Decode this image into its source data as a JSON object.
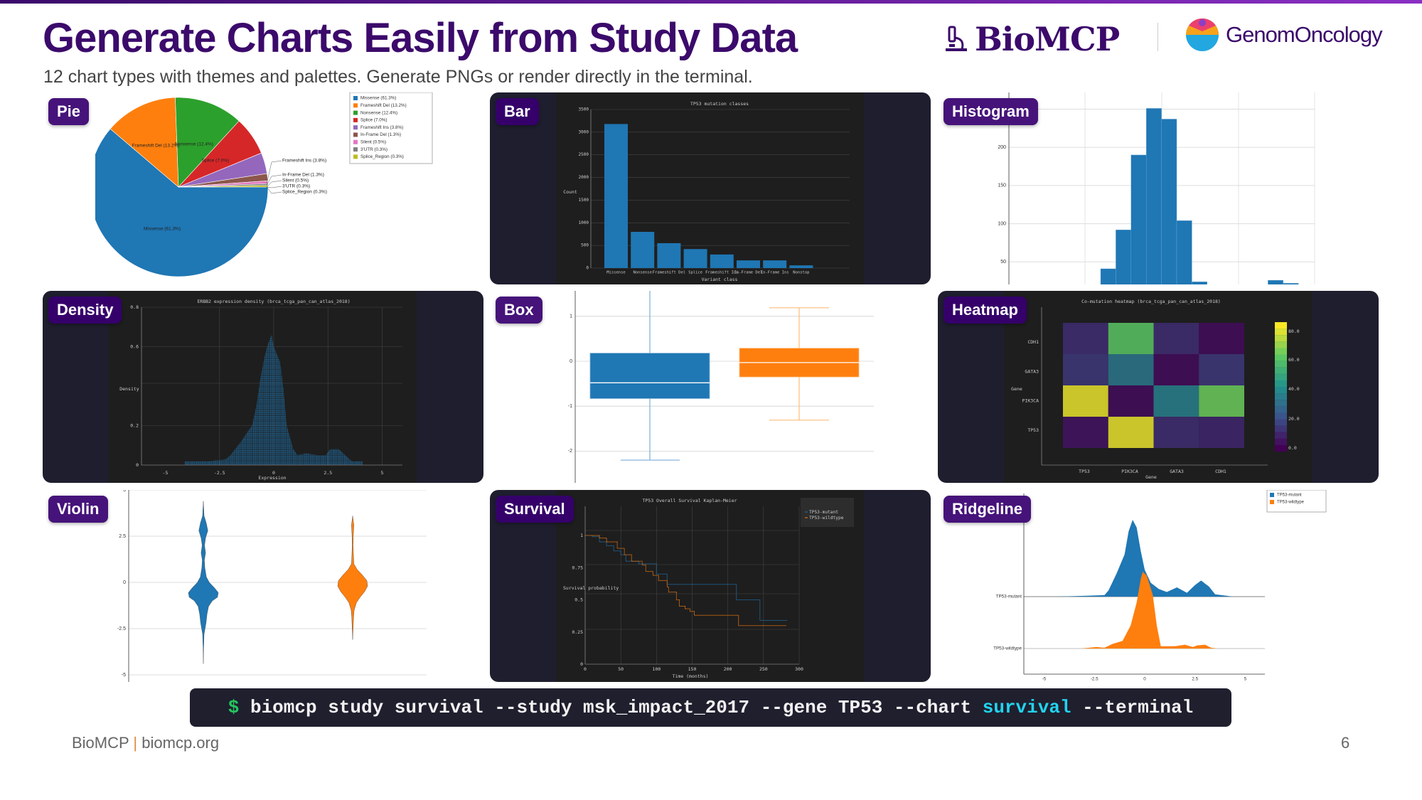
{
  "header": {
    "title": "Generate Charts Easily from Study Data",
    "subtitle": "12 chart types with themes and palettes. Generate PNGs or render directly in the terminal.",
    "logo_biomcp": "BioMCP",
    "logo_genomoncology": "GenomOncology"
  },
  "panels": [
    "Pie",
    "Bar",
    "Histogram",
    "Density",
    "Box",
    "Heatmap",
    "Violin",
    "Survival",
    "Ridgeline"
  ],
  "command": {
    "prompt": "$",
    "before": " biomcp study survival --study msk_impact_2017 --gene TP53 --chart ",
    "highlight": "survival",
    "after": " --terminal",
    "colors": {
      "prompt": "#22c55e",
      "highlight": "#22d3ee"
    }
  },
  "footer": {
    "brand": "BioMCP",
    "separator": "|",
    "url": "biomcp.org",
    "page": "6"
  },
  "chart_data": [
    {
      "type": "pie",
      "slices": [
        {
          "label": "Missense (61.3%)",
          "value": 61.3,
          "color": "#1f77b4"
        },
        {
          "label": "Frameshift Del (13.2%)",
          "value": 13.2,
          "color": "#ff7f0e"
        },
        {
          "label": "Nonsense (12.4%)",
          "value": 12.4,
          "color": "#2ca02c"
        },
        {
          "label": "Splice (7.0%)",
          "value": 7.0,
          "color": "#d62728"
        },
        {
          "label": "Frameshift Ins (3.8%)",
          "value": 3.8,
          "color": "#9467bd"
        },
        {
          "label": "In-Frame Del (1.3%)",
          "value": 1.3,
          "color": "#8c564b"
        },
        {
          "label": "Silent (0.5%)",
          "value": 0.5,
          "color": "#e377c2"
        },
        {
          "label": "3'UTR (0.3%)",
          "value": 0.3,
          "color": "#7f7f7f"
        },
        {
          "label": "Splice_Region (0.3%)",
          "value": 0.3,
          "color": "#bcbd22"
        }
      ],
      "legend": "top-right"
    },
    {
      "type": "bar",
      "title": "TP53 mutation classes",
      "xlabel": "Variant class",
      "ylabel": "Count",
      "categories": [
        "Missense",
        "Nonsense",
        "Frameshift Del",
        "Splice",
        "Frameshift Ins",
        "In-Frame Del",
        "In-Frame Ins",
        "Nonstop"
      ],
      "values": [
        3180,
        800,
        550,
        420,
        300,
        170,
        170,
        60
      ],
      "ylim": [
        0,
        3500
      ],
      "yticks": [
        "0",
        "500",
        "1000",
        "1500",
        "2000",
        "2500",
        "3000",
        "3500"
      ],
      "color": "#1f77b4",
      "theme": "dark",
      "grid": true
    },
    {
      "type": "bar",
      "subtype": "histogram",
      "values": [
        41,
        92,
        190,
        251,
        237,
        104,
        24,
        0,
        0,
        0,
        0,
        26,
        22
      ],
      "ylim": [
        0,
        260
      ],
      "yticks": [
        "50",
        "100",
        "150",
        "200"
      ],
      "color": "#1f77b4",
      "grid": true
    },
    {
      "type": "area",
      "subtype": "density",
      "title": "ERBB2 expression density (brca_tcga_pan_can_atlas_2018)",
      "xlabel": "Expression",
      "ylabel": "Density",
      "xlim": [
        -6,
        6
      ],
      "ylim": [
        0,
        0.8
      ],
      "xticks": [
        "-5",
        "-2.5",
        "0",
        "2.5",
        "5"
      ],
      "yticks": [
        "0",
        "0.2",
        "0.6",
        "0.8"
      ],
      "x": [
        -4.1,
        -3,
        -2.5,
        -2.2,
        -2,
        -1.5,
        -1.2,
        -1,
        -0.8,
        -0.6,
        -0.4,
        -0.25,
        -0.1,
        0,
        0.15,
        0.3,
        0.45,
        0.6,
        0.75,
        0.9,
        1.1,
        1.5,
        2,
        2.4,
        2.6,
        3,
        3.3,
        3.6,
        4.1
      ],
      "y": [
        0.02,
        0.02,
        0.025,
        0.03,
        0.05,
        0.12,
        0.17,
        0.2,
        0.3,
        0.45,
        0.56,
        0.62,
        0.66,
        0.6,
        0.56,
        0.52,
        0.38,
        0.2,
        0.14,
        0.08,
        0.05,
        0.06,
        0.05,
        0.05,
        0.08,
        0.08,
        0.05,
        0.02,
        0.02
      ],
      "color": "#1f77b4",
      "theme": "dark",
      "grid": true
    },
    {
      "type": "box",
      "yticks": [
        "1",
        "0",
        "-1",
        "-2"
      ],
      "ylim": [
        -2.7,
        1.6
      ],
      "series": [
        {
          "min": -2.2,
          "q1": -0.83,
          "median": -0.48,
          "q3": 0.18,
          "max": 1.9,
          "color": "#1f77b4"
        },
        {
          "min": -1.31,
          "q1": -0.35,
          "median": -0.03,
          "q3": 0.29,
          "max": 1.19,
          "color": "#ff7f0e"
        }
      ],
      "grid": true
    },
    {
      "type": "heatmap",
      "title": "Co-mutation heatmap (brca_tcga_pan_can_atlas_2018)",
      "xlabel": "Gene",
      "ylabel": "Gene",
      "columns": [
        "TP53",
        "PIK3CA",
        "GATA3",
        "CDH1"
      ],
      "rows": [
        "CDH1",
        "GATA3",
        "PIK3CA",
        "TP53"
      ],
      "values": [
        [
          12,
          65,
          12,
          3
        ],
        [
          15,
          35,
          3,
          15
        ],
        [
          85,
          3,
          38,
          68
        ],
        [
          5,
          85,
          12,
          10
        ]
      ],
      "colorbar_ticks": [
        "80.0",
        "60.0",
        "40.0",
        "20.0",
        "0.0"
      ],
      "colorbar_range": [
        0,
        88
      ],
      "colormap": "viridis",
      "theme": "dark"
    },
    {
      "type": "violin",
      "ylim": [
        -5.2,
        5
      ],
      "yticks": [
        "5",
        "2.5",
        "0",
        "-2.5",
        "-5"
      ],
      "series": [
        {
          "color": "#1f77b4",
          "y": [
            4.4,
            3.6,
            3.2,
            2.8,
            2.4,
            2.0,
            1.6,
            1.2,
            0.8,
            0.3,
            0,
            -0.3,
            -0.55,
            -0.8,
            -1.0,
            -1.3,
            -1.7,
            -2.2,
            -2.8,
            -3.5,
            -4.4
          ],
          "width": [
            0,
            0.05,
            0.2,
            0.3,
            0.15,
            0.08,
            0.15,
            0.07,
            0.1,
            0.2,
            0.4,
            0.75,
            1.0,
            0.95,
            0.6,
            0.35,
            0.25,
            0.18,
            0.05,
            0.02,
            0
          ]
        },
        {
          "color": "#ff7f0e",
          "y": [
            3.6,
            3.1,
            2.5,
            2.0,
            1.5,
            1.0,
            0.7,
            0.4,
            0.1,
            -0.2,
            -0.5,
            -0.8,
            -1.1,
            -1.5,
            -1.9,
            -2.5,
            -3.1
          ],
          "width": [
            0,
            0.08,
            0.04,
            0.03,
            0.05,
            0.08,
            0.3,
            0.65,
            0.95,
            1.0,
            0.8,
            0.5,
            0.25,
            0.1,
            0.06,
            0.03,
            0
          ]
        }
      ],
      "grid": true
    },
    {
      "type": "line",
      "subtype": "kaplan-meier",
      "title": "TP53 Overall Survival Kaplan-Meier",
      "xlabel": "Time (months)",
      "ylabel": "Survival probability",
      "xlim": [
        0,
        300
      ],
      "ylim": [
        0,
        1
      ],
      "xticks": [
        "0",
        "50",
        "100",
        "150",
        "200",
        "250",
        "300"
      ],
      "yticks": [
        "1",
        "0.75",
        "0.5",
        "0.25",
        "0"
      ],
      "legend": "top-right",
      "theme": "dark",
      "series": [
        {
          "name": "TP53-mutant",
          "color": "#1f77b4",
          "x": [
            0,
            10,
            20,
            30,
            40,
            50,
            57,
            75,
            100,
            115,
            212,
            245,
            283
          ],
          "y": [
            1.0,
            0.99,
            0.95,
            0.92,
            0.88,
            0.85,
            0.8,
            0.78,
            0.7,
            0.62,
            0.5,
            0.34,
            0.34
          ]
        },
        {
          "name": "TP53-wildtype",
          "color": "#ff7f0e",
          "x": [
            0,
            20,
            30,
            45,
            55,
            65,
            80,
            85,
            95,
            103,
            115,
            117,
            128,
            132,
            140,
            147,
            153,
            215,
            282
          ],
          "y": [
            1.0,
            0.98,
            0.95,
            0.9,
            0.85,
            0.8,
            0.77,
            0.72,
            0.69,
            0.65,
            0.6,
            0.56,
            0.5,
            0.45,
            0.43,
            0.41,
            0.38,
            0.3,
            0.3
          ]
        }
      ]
    },
    {
      "type": "area",
      "subtype": "ridgeline",
      "xlim": [
        -6,
        6
      ],
      "xticks": [
        "-5",
        "-2.5",
        "0",
        "2.5",
        "5"
      ],
      "legend": "top-right",
      "series": [
        {
          "name": "TP53-mutant",
          "color": "#1f77b4",
          "x": [
            -4.4,
            -3,
            -2,
            -1.8,
            -1.4,
            -1.0,
            -0.8,
            -0.6,
            -0.4,
            -0.2,
            0,
            0.3,
            0.7,
            1.1,
            1.6,
            2.1,
            2.5,
            2.8,
            3.2,
            3.5,
            4.4
          ],
          "y": [
            0,
            0.01,
            0.02,
            0.08,
            0.3,
            0.55,
            0.85,
            1.0,
            0.9,
            0.6,
            0.35,
            0.18,
            0.1,
            0.06,
            0.12,
            0.05,
            0.15,
            0.21,
            0.13,
            0.03,
            0
          ]
        },
        {
          "name": "TP53-wildtype",
          "color": "#ff7f0e",
          "x": [
            -3.2,
            -2.4,
            -2,
            -1.6,
            -1.1,
            -0.7,
            -0.4,
            -0.2,
            -0.1,
            0.1,
            0.4,
            0.6,
            0.8,
            1.5,
            2,
            2.4,
            2.6,
            3,
            3.3,
            3.6
          ],
          "y": [
            0,
            0.02,
            0.01,
            0.06,
            0.1,
            0.3,
            0.6,
            0.9,
            1.0,
            0.95,
            0.7,
            0.3,
            0.03,
            0.03,
            0.05,
            0.02,
            0.04,
            0.05,
            0.01,
            0
          ]
        }
      ]
    }
  ]
}
